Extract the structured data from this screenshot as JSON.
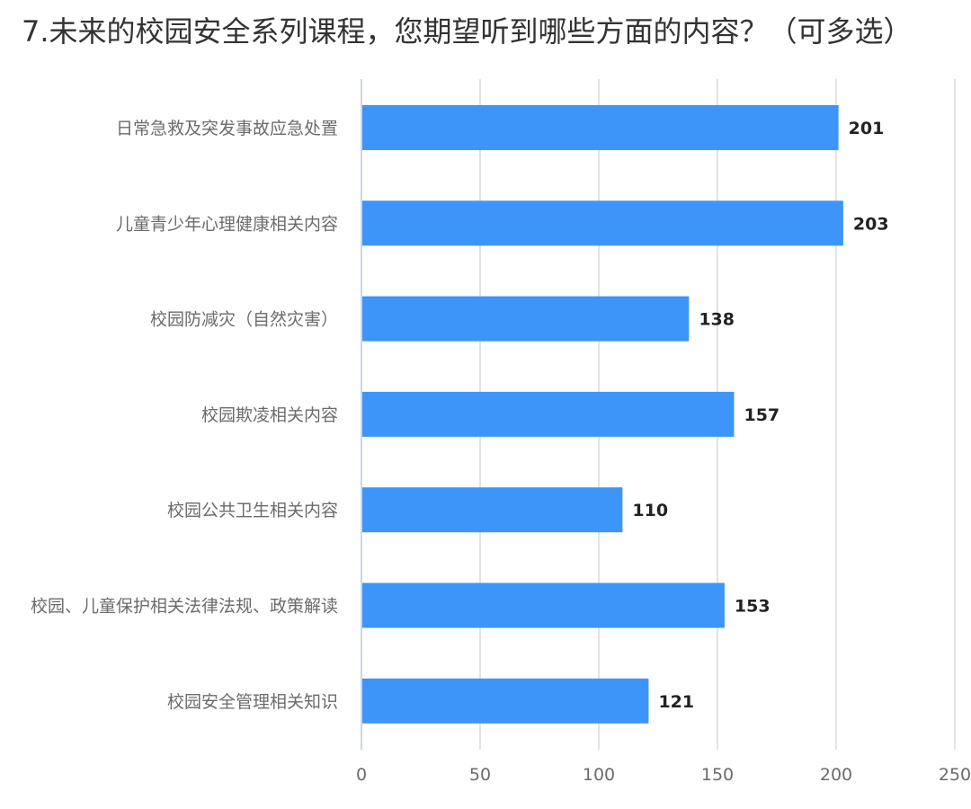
{
  "chart_data": {
    "type": "bar",
    "orientation": "horizontal",
    "title": "7.未来的校园安全系列课程，您期望听到哪些方面的内容？（可多选）",
    "categories": [
      "日常急救及突发事故应急处置",
      "儿童青少年心理健康相关内容",
      "校园防减灾（自然灾害）",
      "校园欺凌相关内容",
      "校园公共卫生相关内容",
      "校园、儿童保护相关法律法规、政策解读",
      "校园安全管理相关知识"
    ],
    "values": [
      201,
      203,
      138,
      157,
      110,
      153,
      121
    ],
    "xlim": [
      0,
      250
    ],
    "xticks": [
      0,
      50,
      100,
      150,
      200,
      250
    ],
    "grid": true,
    "bar_color": "#3d95fa",
    "grid_color": "#e3e3e3",
    "axis_color": "#c9d6e3"
  }
}
